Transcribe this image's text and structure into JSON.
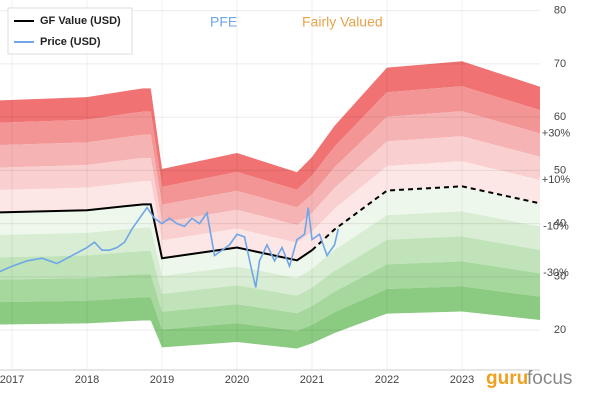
{
  "chart_data": {
    "type": "line",
    "title": "PFE",
    "subtitle": "Fairly Valued",
    "logo": {
      "left": "guru",
      "right": "focus"
    },
    "xlim": [
      2016.84,
      2024.04
    ],
    "xticks": [
      2017,
      2018,
      2019,
      2020,
      2021,
      2022,
      2023
    ],
    "ylim": [
      12.5,
      82
    ],
    "yticks": [
      20,
      30,
      40,
      50,
      60,
      70,
      80
    ],
    "grid": true,
    "legend": "top-left",
    "series": [
      {
        "name": "GF Value (USD)",
        "color": "#000000",
        "dashed_from": 2021.0,
        "x": [
          2016.84,
          2018.0,
          2018.6,
          2018.75,
          2018.85,
          2019.0,
          2020.0,
          2020.8,
          2021.0,
          2021.3,
          2022.0,
          2023.0,
          2024.04
        ],
        "values": [
          42.1,
          42.5,
          43.4,
          43.6,
          43.6,
          33.5,
          35.5,
          33.1,
          35.0,
          38.9,
          46.2,
          47.0,
          43.8
        ]
      },
      {
        "name": "Price (USD)",
        "color": "#6ea6e8",
        "x": [
          2016.84,
          2017.0,
          2017.2,
          2017.4,
          2017.6,
          2017.8,
          2018.0,
          2018.1,
          2018.2,
          2018.3,
          2018.4,
          2018.5,
          2018.6,
          2018.7,
          2018.8,
          2018.9,
          2019.0,
          2019.1,
          2019.2,
          2019.3,
          2019.4,
          2019.5,
          2019.6,
          2019.65,
          2019.7,
          2019.8,
          2019.9,
          2020.0,
          2020.1,
          2020.2,
          2020.25,
          2020.3,
          2020.4,
          2020.5,
          2020.6,
          2020.7,
          2020.8,
          2020.9,
          2020.95,
          2021.0,
          2021.1,
          2021.2,
          2021.3,
          2021.35
        ],
        "values": [
          31,
          32,
          33,
          33.5,
          32.5,
          34,
          35.5,
          36.5,
          35,
          35,
          35.5,
          36.5,
          39,
          41,
          43,
          41,
          40,
          41,
          40,
          39.5,
          41,
          40,
          42,
          38,
          34,
          35,
          36,
          38,
          37.5,
          31,
          28,
          33,
          36,
          33,
          35.5,
          32,
          37,
          38,
          43,
          37,
          38,
          34,
          36,
          39
        ]
      }
    ],
    "bands": {
      "levels": [
        50,
        40,
        30,
        20,
        10,
        0,
        -10,
        -20,
        -30,
        -40,
        -50
      ],
      "colors": [
        "#f07272",
        "#f39595",
        "#f6b3b3",
        "#f9cfcf",
        "#fde6e6",
        "#eef7ec",
        "#d8edd3",
        "#c0e3b9",
        "#a6d79d",
        "#8bca81",
        "#72bd68"
      ],
      "labels": [
        {
          "label": "+30%",
          "level": 30
        },
        {
          "label": "+10%",
          "level": 10
        },
        {
          "label": "-10%",
          "level": -10
        },
        {
          "label": "-30%",
          "level": -30
        }
      ]
    }
  }
}
